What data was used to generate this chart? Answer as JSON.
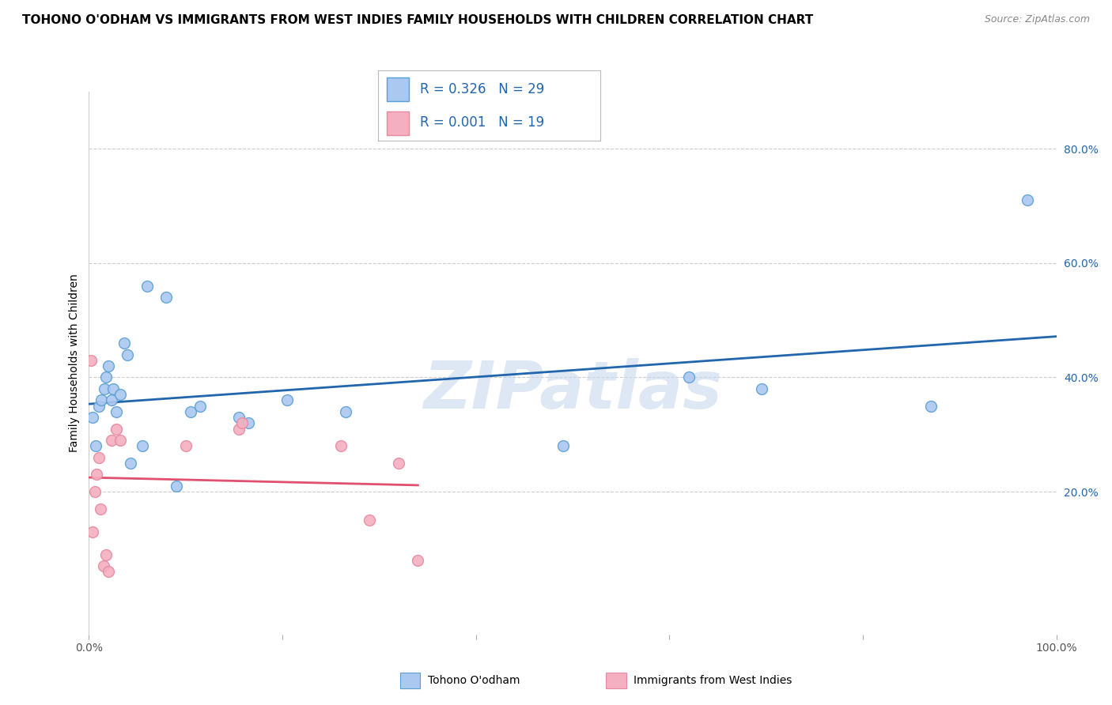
{
  "title": "TOHONO O'ODHAM VS IMMIGRANTS FROM WEST INDIES FAMILY HOUSEHOLDS WITH CHILDREN CORRELATION CHART",
  "source": "Source: ZipAtlas.com",
  "ylabel": "Family Households with Children",
  "watermark": "ZIPatlas",
  "xlim": [
    0.0,
    1.0
  ],
  "ylim": [
    -0.05,
    0.9
  ],
  "yticks": [
    0.2,
    0.4,
    0.6,
    0.8
  ],
  "ytick_labels": [
    "20.0%",
    "40.0%",
    "60.0%",
    "80.0%"
  ],
  "grid_color": "#cccccc",
  "background_color": "#ffffff",
  "series1_name": "Tohono O'odham",
  "series1_color": "#aac8f0",
  "series1_edge_color": "#5a9fd4",
  "series1_line_color": "#2166ac",
  "series1_R": "0.326",
  "series1_N": "29",
  "series2_name": "Immigrants from West Indies",
  "series2_color": "#f4b0c0",
  "series2_edge_color": "#e888a0",
  "series2_line_color": "#e05070",
  "series2_R": "0.001",
  "series2_N": "19",
  "series1_x": [
    0.004,
    0.007,
    0.01,
    0.013,
    0.016,
    0.018,
    0.02,
    0.023,
    0.025,
    0.028,
    0.032,
    0.036,
    0.04,
    0.043,
    0.055,
    0.06,
    0.08,
    0.09,
    0.105,
    0.115,
    0.155,
    0.165,
    0.205,
    0.265,
    0.49,
    0.62,
    0.695,
    0.87,
    0.97
  ],
  "series1_y": [
    0.33,
    0.28,
    0.35,
    0.36,
    0.38,
    0.4,
    0.42,
    0.36,
    0.38,
    0.34,
    0.37,
    0.46,
    0.44,
    0.25,
    0.28,
    0.56,
    0.54,
    0.21,
    0.34,
    0.35,
    0.33,
    0.32,
    0.36,
    0.34,
    0.28,
    0.4,
    0.38,
    0.35,
    0.71
  ],
  "series2_x": [
    0.002,
    0.004,
    0.006,
    0.008,
    0.01,
    0.012,
    0.015,
    0.018,
    0.02,
    0.023,
    0.028,
    0.032,
    0.1,
    0.155,
    0.158,
    0.26,
    0.29,
    0.32,
    0.34
  ],
  "series2_y": [
    0.43,
    0.13,
    0.2,
    0.23,
    0.26,
    0.17,
    0.07,
    0.09,
    0.06,
    0.29,
    0.31,
    0.29,
    0.28,
    0.31,
    0.32,
    0.28,
    0.15,
    0.25,
    0.08
  ],
  "legend_box_color1": "#aac8f0",
  "legend_box_color2": "#f4b0c0",
  "legend_text_color": "#2166ac",
  "title_fontsize": 11,
  "source_fontsize": 9,
  "axis_label_fontsize": 10,
  "tick_fontsize": 10,
  "legend_fontsize": 12,
  "marker_size": 100,
  "marker_linewidth": 1.0
}
